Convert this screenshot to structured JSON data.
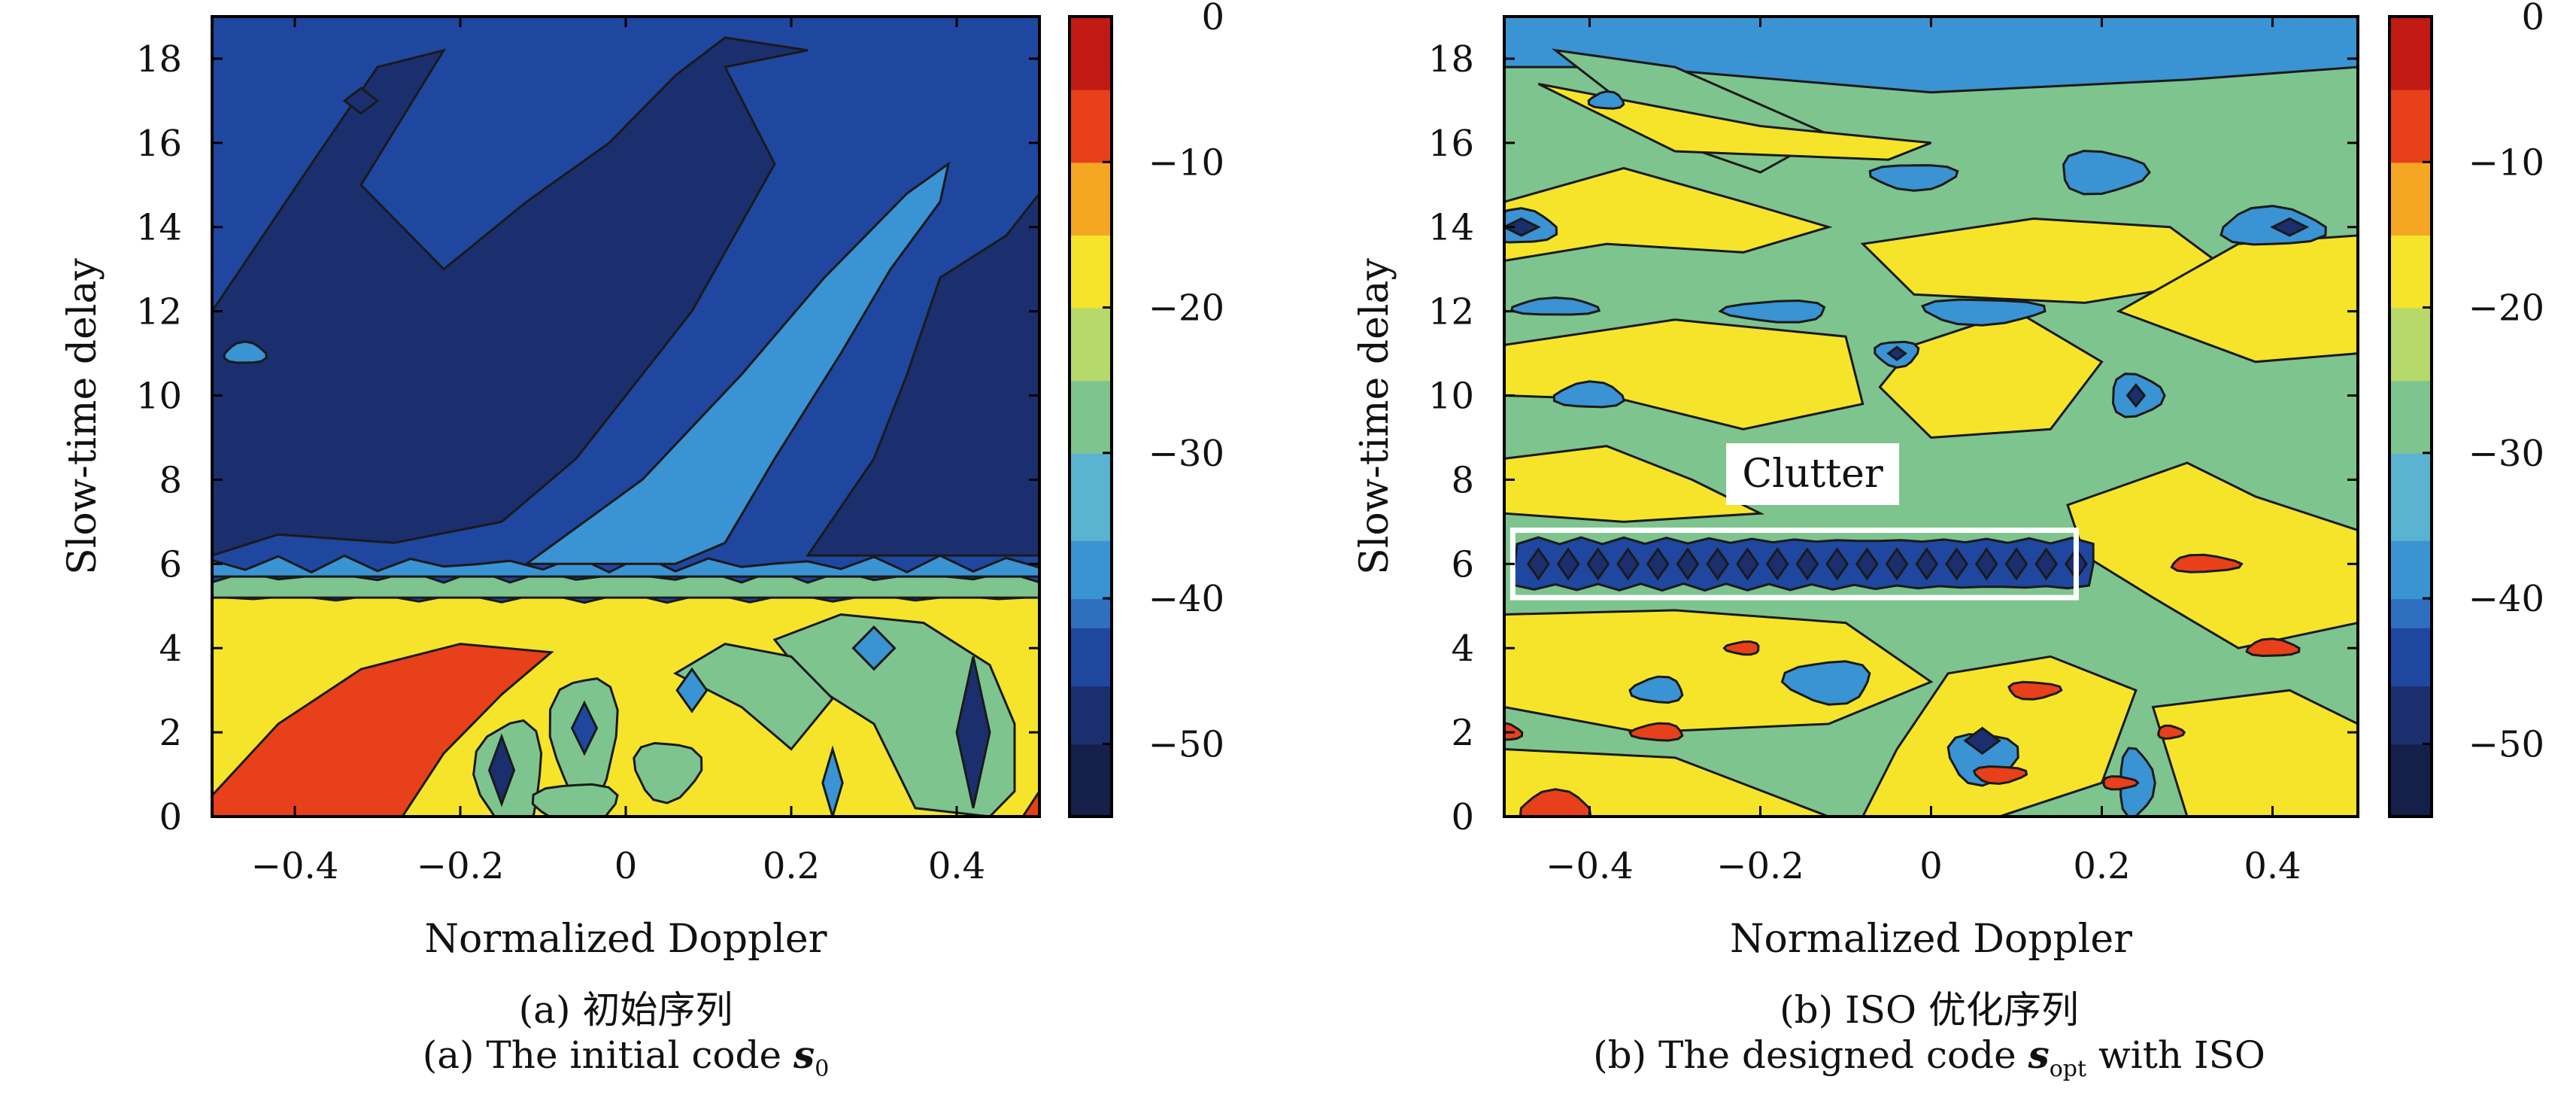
{
  "chart_data": [
    {
      "type": "heatmap",
      "subtype": "filled-contour (cross-ambiguity function)",
      "panel_label": "(a)",
      "caption_cn": "(a) 初始序列",
      "caption_en_prefix": "(a) The initial code ",
      "caption_symbol": "s",
      "caption_subscript": "0",
      "caption_en_suffix": "",
      "xlabel": "Normalized Doppler",
      "ylabel": "Slow-time delay",
      "xlim": [
        -0.5,
        0.5
      ],
      "ylim": [
        0,
        19
      ],
      "xticks": [
        -0.4,
        -0.2,
        0,
        0.2,
        0.4
      ],
      "xtick_labels": [
        "−0.4",
        "−0.2",
        "0",
        "0.2",
        "0.4"
      ],
      "yticks": [
        0,
        2,
        4,
        6,
        8,
        10,
        12,
        14,
        16,
        18
      ],
      "ytick_labels": [
        "0",
        "2",
        "4",
        "6",
        "8",
        "10",
        "12",
        "14",
        "16",
        "18"
      ],
      "colorbar": {
        "range": [
          -55,
          0
        ],
        "ticks": [
          0,
          -10,
          -20,
          -30,
          -40,
          -50
        ],
        "tick_labels": [
          "0",
          "−10",
          "−20",
          "−30",
          "−40",
          "−50"
        ]
      },
      "contour_levels_db": [
        -52,
        -46,
        -40,
        -30,
        -20,
        -10
      ],
      "regions": [
        {
          "level_db": -46,
          "description": "background for delay > 6"
        },
        {
          "level_db": -52,
          "description": "dark band from upper-left along diagonal"
        },
        {
          "level_db": -40,
          "description": "diagonal ridge from (0.05,6) to (0.38,15)"
        },
        {
          "level_db": -30,
          "description": "thin band at delay ~5.5"
        },
        {
          "level_db": -20,
          "description": "yellow region for delay 0-5"
        },
        {
          "level_db": -10,
          "description": "red lobe lower-left, delay 0-4"
        }
      ],
      "annotations": []
    },
    {
      "type": "heatmap",
      "subtype": "filled-contour (cross-ambiguity function)",
      "panel_label": "(b)",
      "caption_cn": "(b) ISO 优化序列",
      "caption_en_prefix": "(b) The designed code ",
      "caption_symbol": "s",
      "caption_subscript": "opt",
      "caption_en_suffix": " with ISO",
      "xlabel": "Normalized Doppler",
      "ylabel": "Slow-time delay",
      "xlim": [
        -0.5,
        0.5
      ],
      "ylim": [
        0,
        19
      ],
      "xticks": [
        -0.4,
        -0.2,
        0,
        0.2,
        0.4
      ],
      "xtick_labels": [
        "−0.4",
        "−0.2",
        "0",
        "0.2",
        "0.4"
      ],
      "yticks": [
        0,
        2,
        4,
        6,
        8,
        10,
        12,
        14,
        16,
        18
      ],
      "ytick_labels": [
        "0",
        "2",
        "4",
        "6",
        "8",
        "10",
        "12",
        "14",
        "16",
        "18"
      ],
      "colorbar": {
        "range": [
          -55,
          0
        ],
        "ticks": [
          0,
          -10,
          -20,
          -30,
          -40,
          -50
        ],
        "tick_labels": [
          "0",
          "−10",
          "−20",
          "−30",
          "−40",
          "−50"
        ]
      },
      "contour_levels_db": [
        -52,
        -46,
        -40,
        -30,
        -20,
        -10
      ],
      "regions": [
        {
          "level_db": -30,
          "description": "green background over most of plane"
        },
        {
          "level_db": -40,
          "description": "light-blue band at top, delay 17.5-19"
        },
        {
          "level_db": -20,
          "description": "scattered yellow patches"
        },
        {
          "level_db": -46,
          "description": "clutter notch at delay 5-7, Doppler -0.5 to 0.17"
        },
        {
          "level_db": -10,
          "description": "small red spots"
        }
      ],
      "annotations": [
        {
          "label": "Clutter",
          "box_doppler": [
            -0.49,
            0.17
          ],
          "box_delay": [
            5.2,
            6.8
          ]
        }
      ]
    }
  ],
  "colors": {
    "level_-52": "#1b2f6e",
    "level_-46": "#1f47a0",
    "level_-40": "#3a93d2",
    "level_-30": "#7ec48e",
    "level_-20": "#f6e42a",
    "level_-10": "#e8401a",
    "contour_line": "#1a1a1a"
  }
}
